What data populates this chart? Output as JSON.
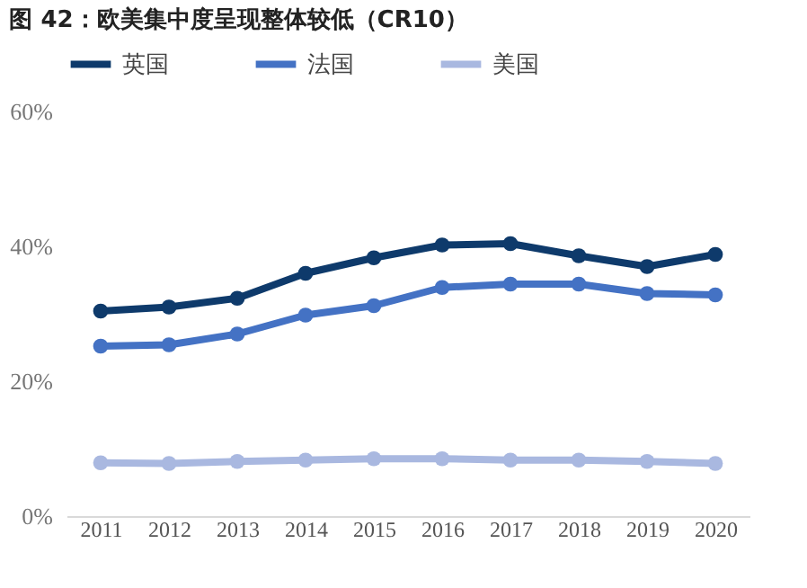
{
  "chart_data": {
    "type": "line",
    "title": "图 42：欧美集中度呈现整体较低（CR10）",
    "categories": [
      "2011",
      "2012",
      "2013",
      "2014",
      "2015",
      "2016",
      "2017",
      "2018",
      "2019",
      "2020"
    ],
    "series": [
      {
        "name": "英国",
        "color": "#0e3a6b",
        "values": [
          30.4,
          31,
          32.3,
          36,
          38.3,
          40.2,
          40.4,
          38.6,
          37,
          38.8
        ]
      },
      {
        "name": "法国",
        "color": "#4472c4",
        "values": [
          25.2,
          25.4,
          27,
          29.8,
          31.2,
          33.9,
          34.4,
          34.4,
          33,
          32.8
        ]
      },
      {
        "name": "美国",
        "color": "#a9b8e0",
        "values": [
          7.9,
          7.8,
          8.1,
          8.3,
          8.5,
          8.5,
          8.3,
          8.3,
          8.1,
          7.8
        ]
      }
    ],
    "ylim": [
      0,
      60
    ],
    "yticks": [
      {
        "value": 0,
        "label": "0%"
      },
      {
        "value": 20,
        "label": "20%"
      },
      {
        "value": 40,
        "label": "40%"
      },
      {
        "value": 60,
        "label": "60%"
      }
    ],
    "grid": false,
    "legend": "top",
    "marker": "circle",
    "line_style": "solid"
  }
}
